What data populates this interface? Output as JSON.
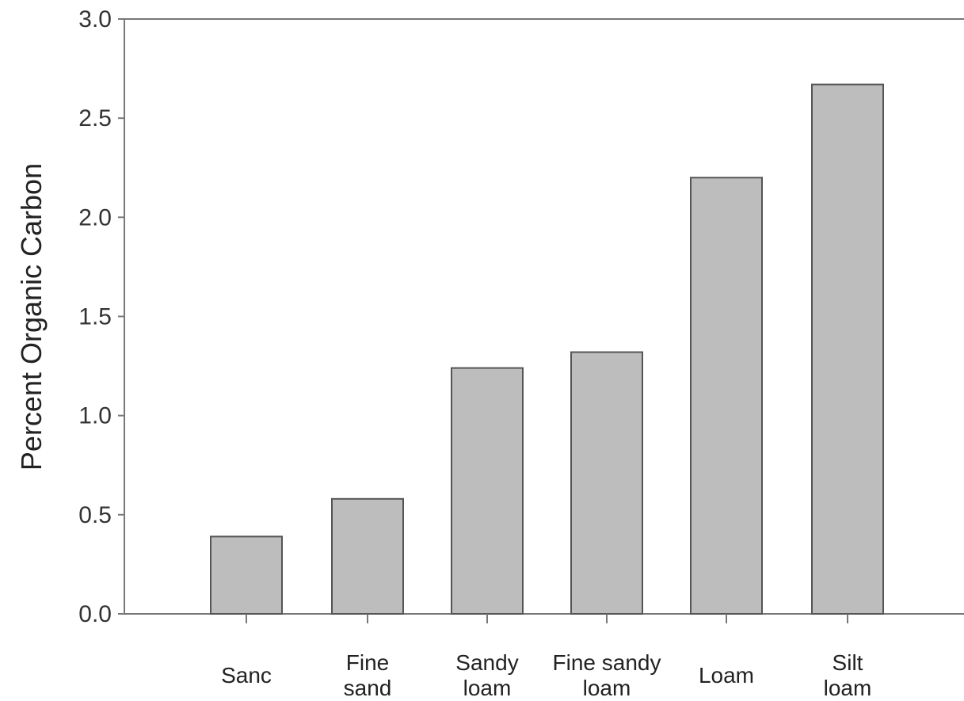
{
  "chart_data": {
    "type": "bar",
    "title": "",
    "xlabel": "",
    "ylabel": "Percent Organic Carbon",
    "categories": [
      [
        "Sanc"
      ],
      [
        "Fine",
        "sand"
      ],
      [
        "Sandy",
        "loam"
      ],
      [
        "Fine sandy",
        "loam"
      ],
      [
        "Loam"
      ],
      [
        "Silt",
        "loam"
      ]
    ],
    "values": [
      0.39,
      0.58,
      1.24,
      1.32,
      2.2,
      2.67
    ],
    "ylim": [
      0,
      3.0
    ],
    "yticks": [
      "0.0",
      "0.5",
      "1.0",
      "1.5",
      "2.0",
      "2.5",
      "3.0"
    ],
    "grid": false,
    "bar_color": "#bdbdbd",
    "bar_edge_color": "#555555"
  }
}
